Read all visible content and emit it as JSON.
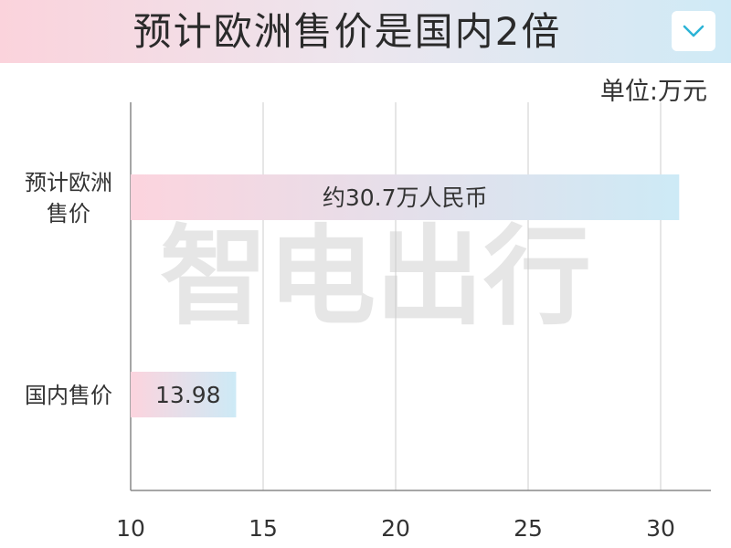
{
  "header": {
    "title": "预计欧洲售价是国内2倍",
    "toggle_icon": "chevron-down-icon",
    "toggle_color": "#2bb3d6"
  },
  "unit_label": "单位:万元",
  "watermark": "智电出行",
  "chart_data": {
    "type": "bar",
    "orientation": "horizontal",
    "title": "预计欧洲售价是国内2倍",
    "categories": [
      "预计欧洲售价",
      "国内售价"
    ],
    "category_lines": [
      [
        "预计欧洲",
        "售价"
      ],
      [
        "国内售价"
      ]
    ],
    "values": [
      30.7,
      13.98
    ],
    "data_labels": [
      "约30.7万人民币",
      "13.98"
    ],
    "xlim": [
      10,
      33
    ],
    "xticks": [
      10,
      15,
      20,
      25,
      30
    ],
    "unit": "单位:万元",
    "grid": true,
    "bar_gradient": [
      "#fcd4de",
      "#cdeaf6"
    ]
  }
}
